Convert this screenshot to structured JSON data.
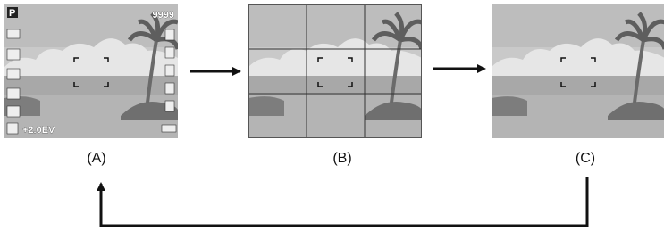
{
  "panels": [
    {
      "label": "(A)",
      "mode": "P",
      "shots": "9999",
      "ev": "+2.0EV"
    },
    {
      "label": "(B)"
    },
    {
      "label": "(C)"
    }
  ]
}
